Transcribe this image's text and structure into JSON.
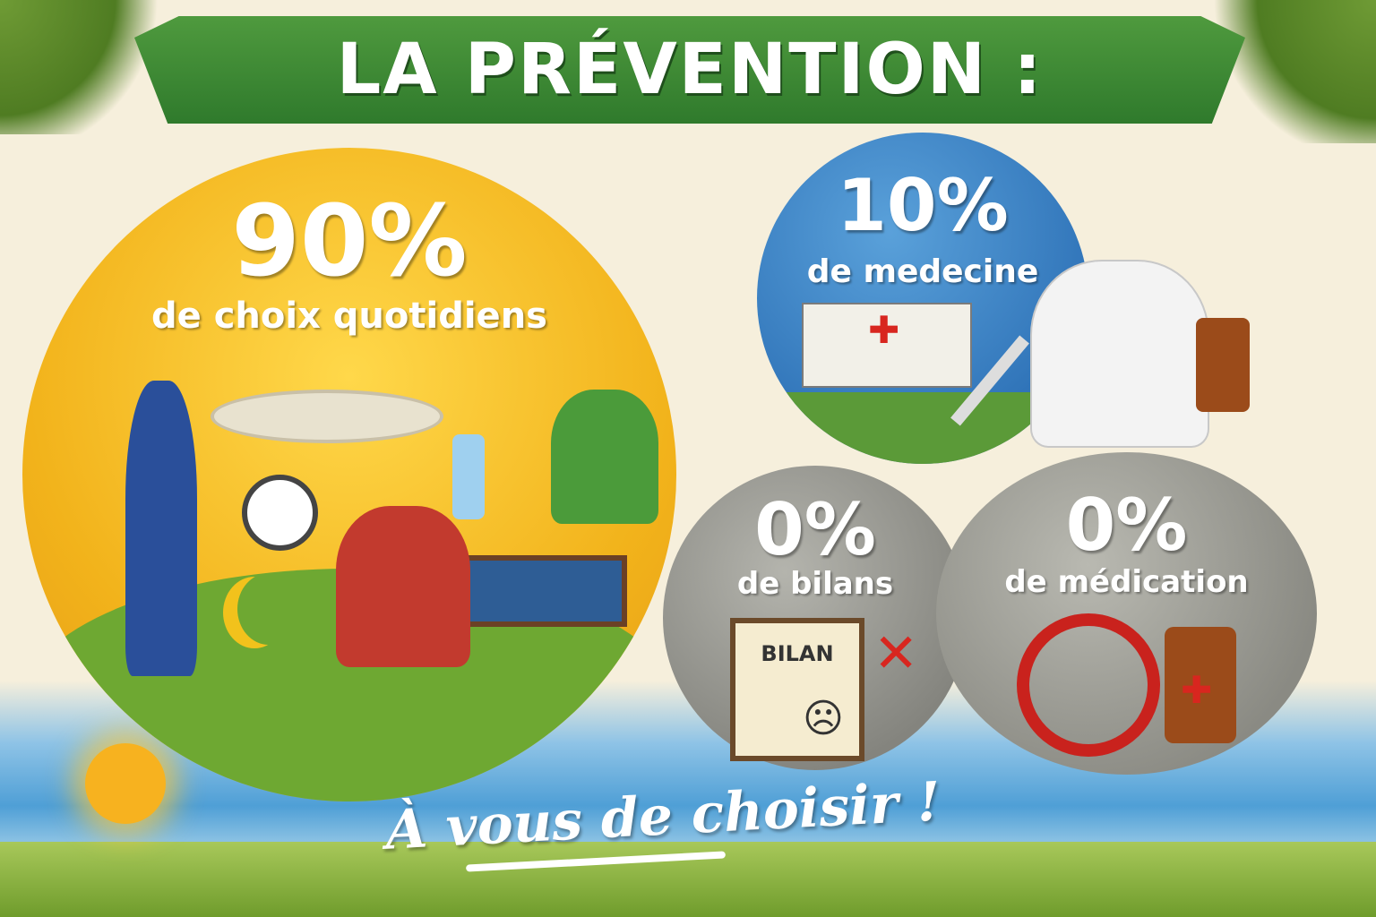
{
  "title": "LA PRÉVENTION :",
  "segments": [
    {
      "percent": "90%",
      "label": "de choix quotidiens",
      "color": "#f2b31b"
    },
    {
      "percent": "10%",
      "label": "de medecine",
      "color": "#2f73b8"
    },
    {
      "percent": "0%",
      "label": "de bilans",
      "color": "#84847e"
    },
    {
      "percent": "0%",
      "label": "de médication",
      "color": "#8a8a83"
    }
  ],
  "clipboard_label": "BILAN",
  "slogan": "À vous de choisir !",
  "colors": {
    "banner": "#2f7a2c",
    "cross": "#d8261f"
  }
}
